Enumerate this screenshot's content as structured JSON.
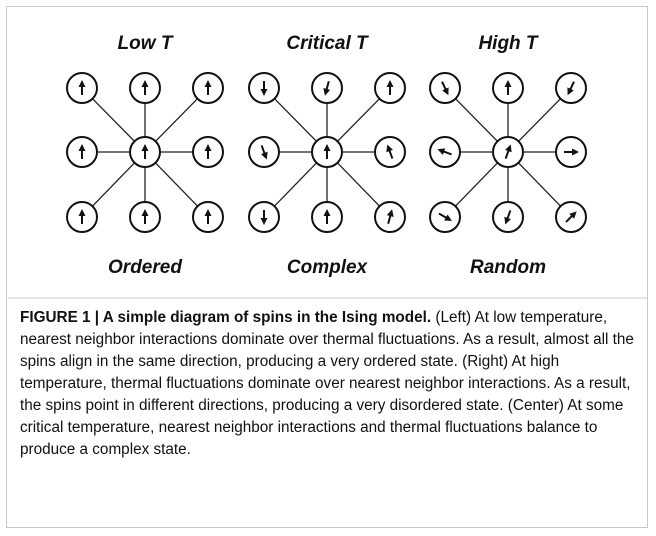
{
  "panels": [
    {
      "title": "Low T",
      "label": "Ordered"
    },
    {
      "title": "Critical T",
      "label": "Complex"
    },
    {
      "title": "High T",
      "label": "Random"
    }
  ],
  "caption": {
    "label": "FIGURE 1 | A simple diagram of spins in the Ising model.",
    "text": "(Left) At low temperature, nearest neighbor interactions dominate over thermal fluctuations. As a result, almost all the spins align in the same direction, producing a very ordered state. (Right) At high temperature, thermal fluctuations dominate over nearest neighbor interactions. As a result, the spins point in different directions, producing a very disordered state. (Center) At some critical temperature, nearest neighbor interactions and thermal fluctuations balance to produce a complex state."
  }
}
